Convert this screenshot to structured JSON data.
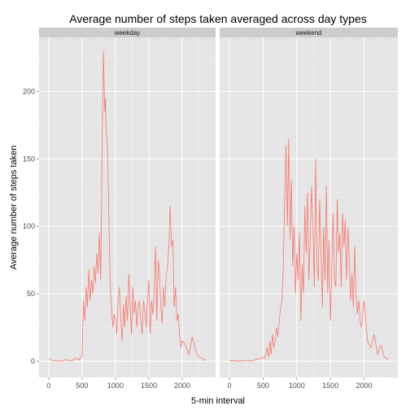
{
  "chart_data": {
    "type": "line",
    "title": "Average number of steps taken averaged across day types",
    "xlabel": "5-min interval",
    "ylabel": "Average number of steps taken",
    "xlim": [
      -145,
      2500
    ],
    "ylim": [
      -12,
      240
    ],
    "x_ticks": [
      0,
      500,
      1000,
      1500,
      2000
    ],
    "y_ticks": [
      0,
      50,
      100,
      150,
      200
    ],
    "x_tick_labels": [
      "0",
      "500",
      "1000",
      "1500",
      "2000"
    ],
    "y_tick_labels": [
      "0",
      "50",
      "100",
      "150",
      "200"
    ],
    "grid": true,
    "line_color": "#F8766D",
    "panels": [
      {
        "name": "weekday",
        "x": [
          0,
          50,
          100,
          150,
          200,
          250,
          300,
          350,
          400,
          450,
          500,
          520,
          540,
          560,
          580,
          600,
          620,
          640,
          660,
          680,
          700,
          720,
          740,
          760,
          780,
          800,
          810,
          820,
          830,
          840,
          850,
          860,
          880,
          900,
          920,
          940,
          960,
          980,
          1000,
          1020,
          1040,
          1060,
          1080,
          1100,
          1120,
          1140,
          1160,
          1180,
          1200,
          1220,
          1240,
          1260,
          1280,
          1300,
          1320,
          1340,
          1360,
          1380,
          1400,
          1420,
          1440,
          1460,
          1480,
          1500,
          1520,
          1540,
          1560,
          1580,
          1600,
          1620,
          1640,
          1660,
          1680,
          1700,
          1720,
          1740,
          1760,
          1780,
          1800,
          1820,
          1840,
          1860,
          1880,
          1900,
          1920,
          1940,
          1960,
          1980,
          2000,
          2050,
          2100,
          2150,
          2200,
          2250,
          2300,
          2355
        ],
        "y": [
          2.3,
          0.5,
          0.3,
          0.2,
          0.1,
          1.2,
          0.5,
          0.3,
          2.5,
          1.0,
          4.0,
          45.0,
          30.0,
          55.0,
          40.0,
          68.0,
          45.0,
          60.0,
          50.0,
          70.0,
          58.0,
          80.0,
          65.0,
          95.0,
          60.0,
          165.0,
          190.0,
          230.0,
          205.0,
          185.0,
          195.0,
          170.0,
          160.0,
          110.0,
          60.0,
          40.0,
          25.0,
          35.0,
          30.0,
          20.0,
          45.0,
          55.0,
          30.0,
          15.0,
          42.0,
          25.0,
          48.0,
          30.0,
          65.0,
          40.0,
          20.0,
          55.0,
          35.0,
          45.0,
          25.0,
          40.0,
          45.0,
          30.0,
          20.0,
          45.0,
          38.0,
          25.0,
          45.0,
          60.0,
          20.0,
          45.0,
          35.0,
          50.0,
          85.0,
          30.0,
          75.0,
          65.0,
          40.0,
          28.0,
          55.0,
          40.0,
          65.0,
          70.0,
          85.0,
          115.0,
          85.0,
          90.0,
          40.0,
          55.0,
          30.0,
          35.0,
          20.0,
          10.0,
          15.0,
          12.0,
          5.0,
          18.0,
          8.0,
          3.0,
          2.0,
          0.5
        ]
      },
      {
        "name": "weekend",
        "x": [
          0,
          50,
          100,
          150,
          200,
          250,
          300,
          350,
          400,
          450,
          500,
          520,
          540,
          560,
          580,
          600,
          620,
          640,
          660,
          680,
          700,
          720,
          740,
          760,
          780,
          800,
          820,
          840,
          860,
          880,
          900,
          920,
          940,
          960,
          980,
          1000,
          1020,
          1040,
          1060,
          1080,
          1100,
          1120,
          1140,
          1160,
          1180,
          1200,
          1220,
          1240,
          1260,
          1280,
          1300,
          1320,
          1340,
          1360,
          1380,
          1400,
          1420,
          1440,
          1460,
          1480,
          1500,
          1520,
          1540,
          1560,
          1580,
          1600,
          1620,
          1640,
          1660,
          1680,
          1700,
          1720,
          1740,
          1760,
          1780,
          1800,
          1820,
          1840,
          1860,
          1880,
          1900,
          1920,
          1940,
          1960,
          1980,
          2000,
          2050,
          2100,
          2150,
          2200,
          2250,
          2300,
          2355
        ],
        "y": [
          0.2,
          0.5,
          0.1,
          0.1,
          0.5,
          0.2,
          0.1,
          0.5,
          1.5,
          2.0,
          3.0,
          2.0,
          5.0,
          10.0,
          3.0,
          15.0,
          5.0,
          20.0,
          10.0,
          15.0,
          25.0,
          18.0,
          30.0,
          40.0,
          45.0,
          70.0,
          120.0,
          160.0,
          100.0,
          165.0,
          90.0,
          135.0,
          70.0,
          100.0,
          50.0,
          80.0,
          60.0,
          95.0,
          30.0,
          72.0,
          50.0,
          115.0,
          80.0,
          125.0,
          60.0,
          90.0,
          130.0,
          100.0,
          55.0,
          150.0,
          70.0,
          60.0,
          120.0,
          80.0,
          40.0,
          100.0,
          60.0,
          130.0,
          50.0,
          90.0,
          30.0,
          70.0,
          110.0,
          60.0,
          55.0,
          120.0,
          80.0,
          95.0,
          55.0,
          110.0,
          85.0,
          105.0,
          60.0,
          100.0,
          75.0,
          45.0,
          65.0,
          40.0,
          85.0,
          50.0,
          35.0,
          45.0,
          30.0,
          25.0,
          35.0,
          45.0,
          15.0,
          10.0,
          20.0,
          5.0,
          12.0,
          3.0,
          1.5
        ]
      }
    ]
  }
}
